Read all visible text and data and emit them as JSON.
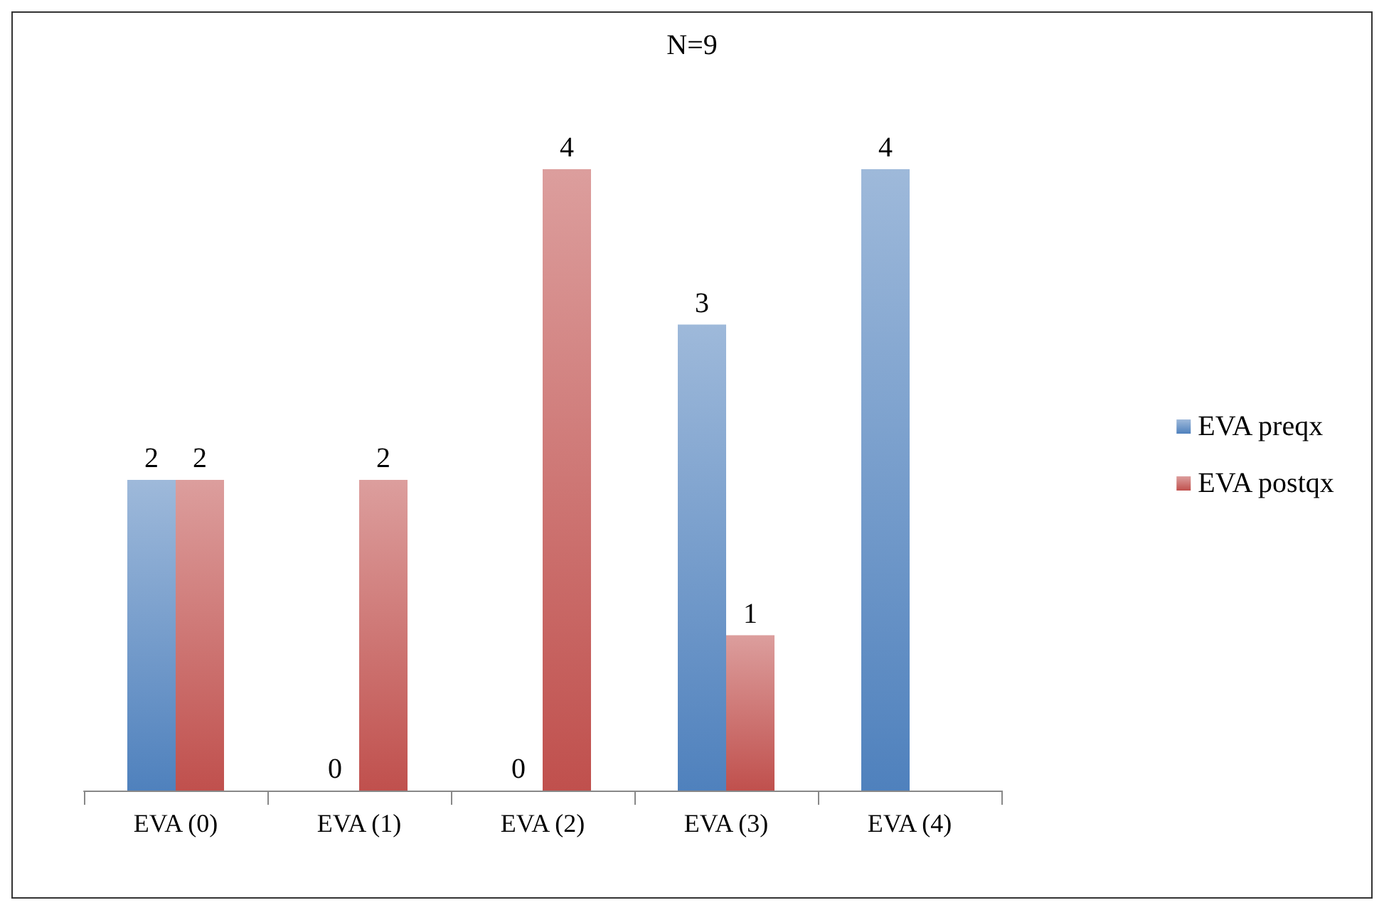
{
  "chart_data": {
    "type": "bar",
    "title": "N=9",
    "categories": [
      "EVA (0)",
      "EVA (1)",
      "EVA (2)",
      "EVA (3)",
      "EVA (4)"
    ],
    "series": [
      {
        "name": "EVA preqx",
        "color": "#4f81bd",
        "values": [
          2,
          0,
          0,
          3,
          4
        ]
      },
      {
        "name": "EVA postqx",
        "color": "#c0504d",
        "values": [
          2,
          2,
          4,
          1,
          null
        ]
      }
    ],
    "data_labels": true,
    "legend": "right",
    "tick_labels": "x"
  }
}
